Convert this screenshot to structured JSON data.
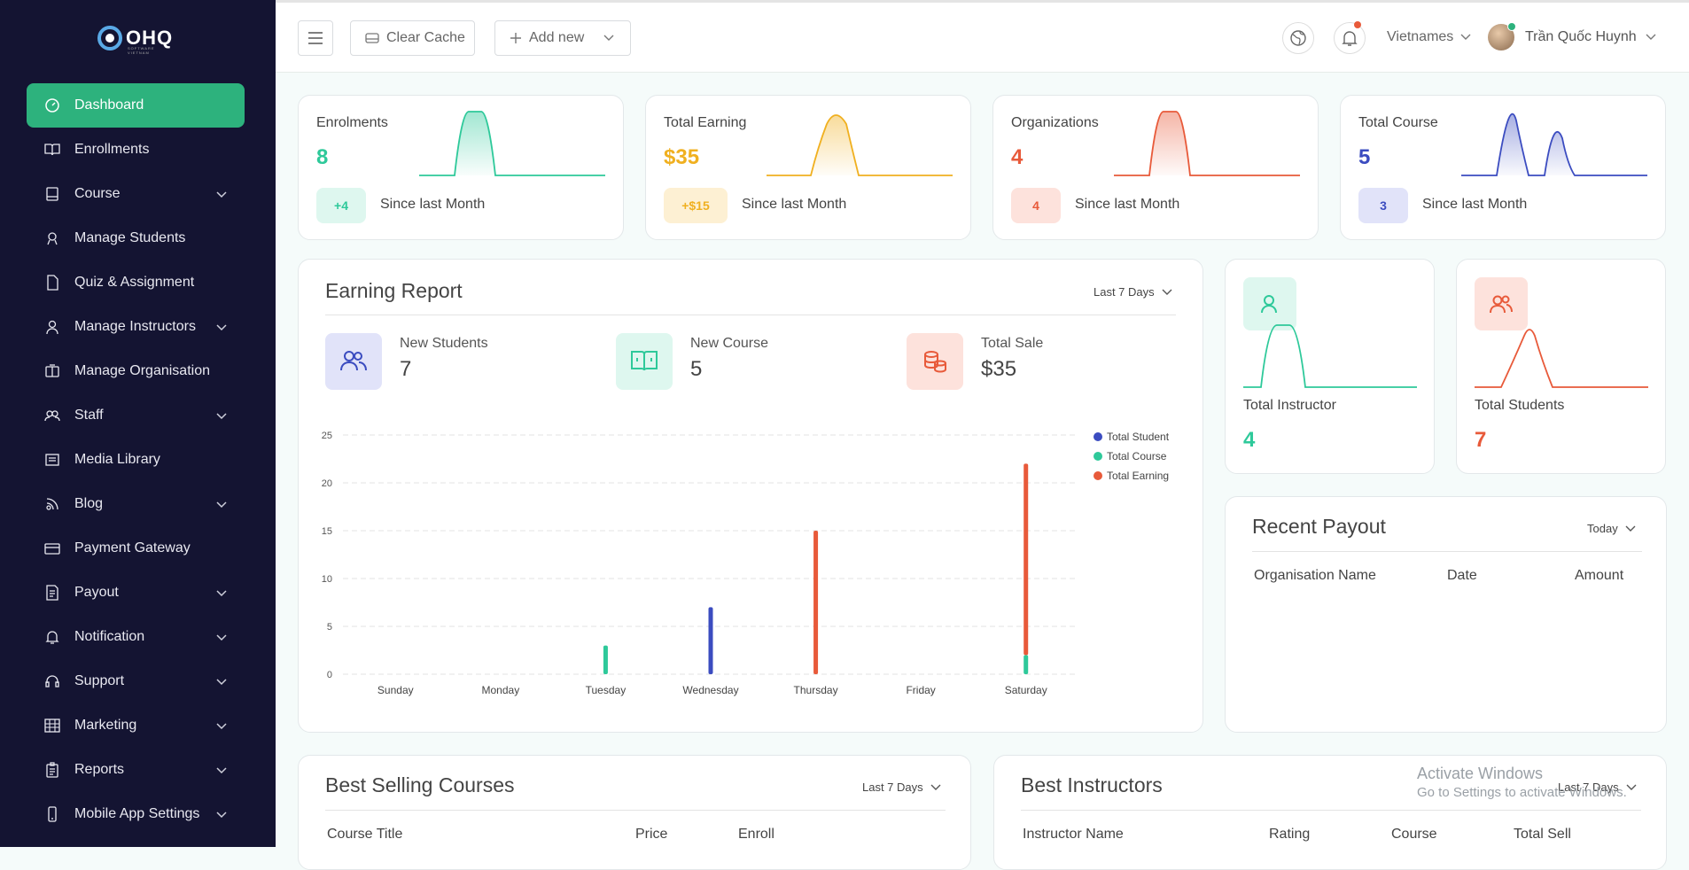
{
  "brand": {
    "logo_text": "OHQ",
    "logo_sub": "SOFTWARE VIETNAM"
  },
  "sidebar": {
    "items": [
      {
        "label": "Dashboard",
        "icon": "dashboard-icon",
        "active": true,
        "has_sub": false
      },
      {
        "label": "Enrollments",
        "icon": "book-open-icon",
        "has_sub": false
      },
      {
        "label": "Course",
        "icon": "course-icon",
        "has_sub": true
      },
      {
        "label": "Manage Students",
        "icon": "student-icon",
        "has_sub": false
      },
      {
        "label": "Quiz & Assignment",
        "icon": "file-icon",
        "has_sub": false
      },
      {
        "label": "Manage Instructors",
        "icon": "instructor-icon",
        "has_sub": true
      },
      {
        "label": "Manage Organisation",
        "icon": "organisation-icon",
        "has_sub": false
      },
      {
        "label": "Staff",
        "icon": "staff-icon",
        "has_sub": true
      },
      {
        "label": "Media Library",
        "icon": "media-icon",
        "has_sub": false
      },
      {
        "label": "Blog",
        "icon": "blog-icon",
        "has_sub": true
      },
      {
        "label": "Payment Gateway",
        "icon": "card-icon",
        "has_sub": false
      },
      {
        "label": "Payout",
        "icon": "payout-icon",
        "has_sub": true
      },
      {
        "label": "Notification",
        "icon": "bell-icon",
        "has_sub": true
      },
      {
        "label": "Support",
        "icon": "headset-icon",
        "has_sub": true
      },
      {
        "label": "Marketing",
        "icon": "grid-icon",
        "has_sub": true
      },
      {
        "label": "Reports",
        "icon": "clipboard-icon",
        "has_sub": true
      },
      {
        "label": "Mobile App Settings",
        "icon": "mobile-icon",
        "has_sub": true
      }
    ]
  },
  "header": {
    "clear_cache": "Clear Cache",
    "add_new": "Add new",
    "language": "Vietnames",
    "user_name": "Trần Quốc Huynh"
  },
  "stats": [
    {
      "label": "Enrolments",
      "value": "8",
      "badge": "+4",
      "since": "Since last Month",
      "color": "#2ec99a",
      "badge_bg": "#def7ef"
    },
    {
      "label": "Total Earning",
      "value": "$35",
      "badge": "+$15",
      "since": "Since last Month",
      "color": "#f0b020",
      "badge_bg": "#fdf0d3"
    },
    {
      "label": "Organizations",
      "value": "4",
      "badge": "4",
      "since": "Since last Month",
      "color": "#e85a3a",
      "badge_bg": "#fde2dc"
    },
    {
      "label": "Total Course",
      "value": "5",
      "badge": "3",
      "since": "Since last Month",
      "color": "#3b4cc0",
      "badge_bg": "#e1e3f9"
    }
  ],
  "earning_report": {
    "title": "Earning Report",
    "range": "Last 7 Days",
    "items": [
      {
        "label": "New Students",
        "value": "7",
        "icon": "users-icon"
      },
      {
        "label": "New Course",
        "value": "5",
        "icon": "book-icon"
      },
      {
        "label": "Total Sale",
        "value": "$35",
        "icon": "coins-icon"
      }
    ]
  },
  "chart_data": {
    "type": "bar",
    "categories": [
      "Sunday",
      "Monday",
      "Tuesday",
      "Wednesday",
      "Thursday",
      "Friday",
      "Saturday"
    ],
    "series": [
      {
        "name": "Total Student",
        "color": "#3b4cc0",
        "values": [
          0,
          0,
          0,
          7,
          0,
          0,
          0
        ]
      },
      {
        "name": "Total Course",
        "color": "#2ec99a",
        "values": [
          0,
          0,
          3,
          0,
          0,
          0,
          2
        ]
      },
      {
        "name": "Total Earning",
        "color": "#e85a3a",
        "values": [
          0,
          0,
          0,
          0,
          15,
          0,
          20
        ]
      }
    ],
    "stacked": true,
    "yticks": [
      0,
      5,
      10,
      15,
      20,
      25
    ],
    "ylim": [
      0,
      25
    ],
    "grid": true,
    "legend": "top-right"
  },
  "side_cards": [
    {
      "label": "Total Instructor",
      "value": "4",
      "color": "#2ec99a",
      "bg": "#def7ef",
      "icon": "instructor-icon"
    },
    {
      "label": "Total Students",
      "value": "7",
      "color": "#e85a3a",
      "bg": "#fde2dc",
      "icon": "students-icon"
    }
  ],
  "recent_payout": {
    "title": "Recent Payout",
    "range": "Today",
    "columns": [
      "Organisation Name",
      "Date",
      "Amount"
    ]
  },
  "best_selling": {
    "title": "Best Selling Courses",
    "range": "Last 7 Days",
    "columns": [
      "Course Title",
      "Price",
      "Enroll"
    ]
  },
  "best_instructors": {
    "title": "Best Instructors",
    "range": "Last 7 Days",
    "columns": [
      "Instructor Name",
      "Rating",
      "Course",
      "Total Sell"
    ]
  },
  "watermark": {
    "line1": "Activate Windows",
    "line2": "Go to Settings to activate Windows."
  }
}
